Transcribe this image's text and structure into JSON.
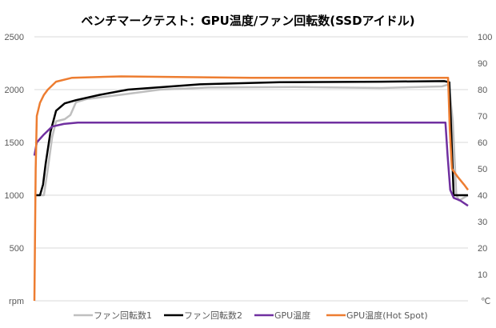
{
  "chart_data": {
    "type": "line",
    "title": "ベンチマークテスト：GPU温度/ファン回転数(SSDアイドル)",
    "xlabel": "",
    "ylabel": "rpm",
    "y2label": "℃",
    "xlim": [
      0,
      100
    ],
    "ylim": [
      0,
      2500
    ],
    "y2lim": [
      0,
      100
    ],
    "yticks": [
      "0",
      "500",
      "1000",
      "1500",
      "2000",
      "2500"
    ],
    "y2ticks": [
      "0",
      "10",
      "20",
      "30",
      "40",
      "50",
      "60",
      "70",
      "80",
      "90",
      "100"
    ],
    "grid": true,
    "legend_position": "bottom",
    "series": [
      {
        "name": "ファン回転数1",
        "axis": "left",
        "color": "#bfbfbf",
        "points": [
          [
            0,
            1000
          ],
          [
            2.2,
            1000
          ],
          [
            3.1,
            1250
          ],
          [
            4.1,
            1550
          ],
          [
            5,
            1700
          ],
          [
            7,
            1720
          ],
          [
            8.3,
            1760
          ],
          [
            9.6,
            1880
          ],
          [
            12,
            1910
          ],
          [
            19.7,
            1950
          ],
          [
            29,
            2000
          ],
          [
            40,
            2020
          ],
          [
            60,
            2025
          ],
          [
            80,
            2015
          ],
          [
            94,
            2030
          ],
          [
            95.6,
            2050
          ],
          [
            96.5,
            1700
          ],
          [
            97.3,
            1000
          ],
          [
            98,
            950
          ],
          [
            100,
            1000
          ]
        ]
      },
      {
        "name": "ファン回転数2",
        "axis": "left",
        "color": "#000000",
        "points": [
          [
            0,
            1000
          ],
          [
            1.3,
            1000
          ],
          [
            2,
            1100
          ],
          [
            2.6,
            1300
          ],
          [
            3.7,
            1600
          ],
          [
            5,
            1800
          ],
          [
            7,
            1870
          ],
          [
            9.6,
            1900
          ],
          [
            15,
            1950
          ],
          [
            21.6,
            2000
          ],
          [
            38.2,
            2050
          ],
          [
            56.6,
            2070
          ],
          [
            80,
            2075
          ],
          [
            94.5,
            2080
          ],
          [
            95.7,
            2070
          ],
          [
            96.7,
            1000
          ],
          [
            100,
            1000
          ]
        ]
      },
      {
        "name": "GPU温度",
        "axis": "right",
        "color": "#7030a0",
        "points": [
          [
            0,
            55
          ],
          [
            0.55,
            60
          ],
          [
            2.2,
            63
          ],
          [
            4.1,
            66
          ],
          [
            6.8,
            67
          ],
          [
            10,
            67.5
          ],
          [
            30,
            67.5
          ],
          [
            60,
            67.5
          ],
          [
            94.8,
            67.5
          ],
          [
            95.3,
            55
          ],
          [
            95.9,
            42
          ],
          [
            96.7,
            39
          ],
          [
            98.2,
            38
          ],
          [
            100,
            36
          ]
        ]
      },
      {
        "name": "GPU温度(Hot Spot)",
        "axis": "right",
        "color": "#ed7d31",
        "points": [
          [
            0,
            0
          ],
          [
            0.3,
            50
          ],
          [
            0.55,
            70
          ],
          [
            1.3,
            75
          ],
          [
            2.2,
            78
          ],
          [
            3.1,
            80
          ],
          [
            5,
            83
          ],
          [
            8.7,
            84.5
          ],
          [
            20,
            85
          ],
          [
            50,
            84.5
          ],
          [
            80,
            84.5
          ],
          [
            95.4,
            84.5
          ],
          [
            95.8,
            65
          ],
          [
            96.3,
            50
          ],
          [
            97.6,
            47
          ],
          [
            99.1,
            44
          ],
          [
            100,
            42
          ]
        ]
      }
    ]
  }
}
